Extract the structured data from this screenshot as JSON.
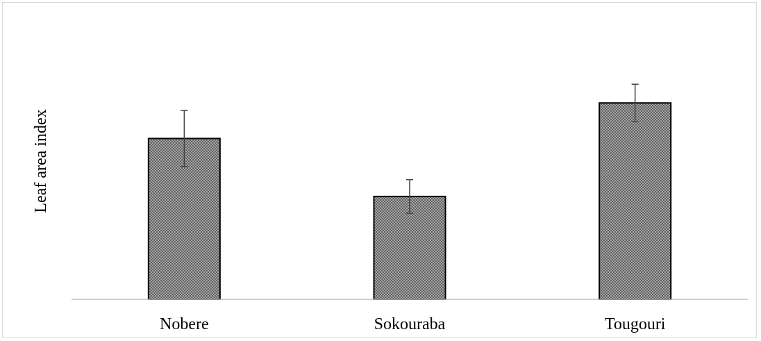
{
  "chart_data": {
    "type": "bar",
    "title": "",
    "xlabel": "",
    "ylabel": "Leaf area index",
    "categories": [
      "Nobere",
      "Sokouraba",
      "Tougouri"
    ],
    "values": [
      2.58,
      1.65,
      3.15
    ],
    "errors": [
      0.45,
      0.27,
      0.3
    ],
    "ylim": [
      0,
      4.3
    ],
    "y_axis_visible": false,
    "grid": false,
    "legend": "none",
    "bar_fill": "crosshatch-grey",
    "colors": {
      "bar_fill": "#8f8f8f",
      "bar_edge": "#000000",
      "error_bar": "#404040",
      "axis": "#bfbfbf"
    }
  }
}
